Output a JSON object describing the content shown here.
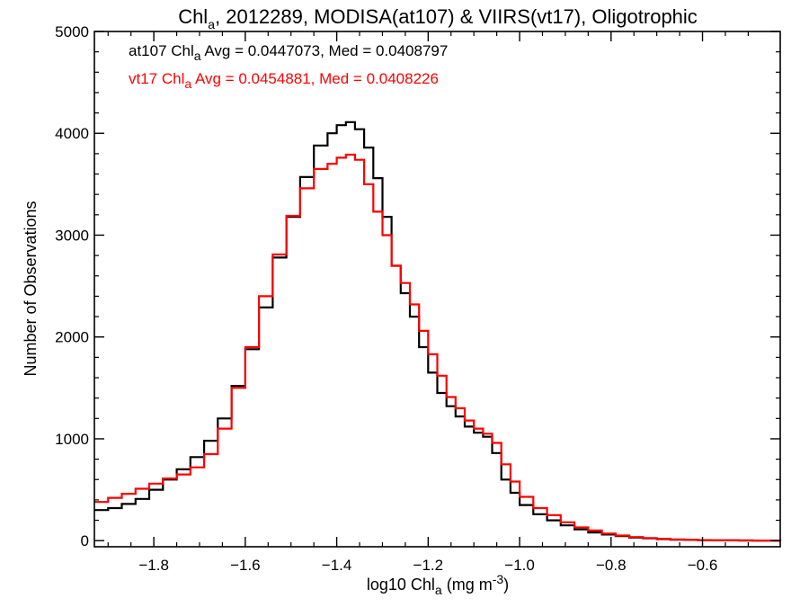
{
  "chart_data": {
    "type": "line",
    "title": {
      "pre": "Chl",
      "sub": "a",
      "post": ", 2012289, MODISA(at107) & VIIRS(vt17), Oligotrophic"
    },
    "xlabel": {
      "pre": "log10 Chl",
      "sub": "a",
      "post": " (mg m",
      "sup": "-3",
      "end": ")"
    },
    "ylabel": "Number of Observations",
    "xlim": [
      -1.93,
      -0.43
    ],
    "ylim": [
      -60,
      5000
    ],
    "xticks": [
      -1.8,
      -1.6,
      -1.4,
      -1.2,
      -1.0,
      -0.8,
      -0.6
    ],
    "xtick_labels": [
      "−1.8",
      "−1.6",
      "−1.4",
      "−1.2",
      "−1.0",
      "−0.8",
      "−0.6"
    ],
    "yticks": [
      0,
      1000,
      2000,
      3000,
      4000,
      5000
    ],
    "ytick_labels": [
      "0",
      "1000",
      "2000",
      "3000",
      "4000",
      "5000"
    ],
    "annotations": [
      {
        "pre": "at107 Chl",
        "sub": "a",
        "post": " Avg = 0.0447073, Med = 0.0408797",
        "color": "#000000"
      },
      {
        "pre": "vt17 Chl",
        "sub": "a",
        "post": " Avg = 0.0454881, Med = 0.0408226",
        "color": "#ff0000"
      }
    ],
    "series": [
      {
        "color": "#000000",
        "x": [
          -1.93,
          -1.9,
          -1.87,
          -1.84,
          -1.81,
          -1.78,
          -1.75,
          -1.72,
          -1.69,
          -1.66,
          -1.63,
          -1.6,
          -1.57,
          -1.54,
          -1.51,
          -1.48,
          -1.45,
          -1.42,
          -1.4,
          -1.38,
          -1.36,
          -1.34,
          -1.32,
          -1.3,
          -1.28,
          -1.26,
          -1.24,
          -1.22,
          -1.2,
          -1.18,
          -1.16,
          -1.14,
          -1.12,
          -1.1,
          -1.08,
          -1.06,
          -1.04,
          -1.02,
          -1.0,
          -0.97,
          -0.94,
          -0.91,
          -0.88,
          -0.85,
          -0.82,
          -0.79,
          -0.76,
          -0.73,
          -0.7,
          -0.67,
          -0.64,
          -0.61,
          -0.58,
          -0.55,
          -0.52,
          -0.49,
          -0.46,
          -0.43
        ],
        "values": [
          300,
          320,
          360,
          410,
          500,
          600,
          700,
          820,
          980,
          1200,
          1520,
          1880,
          2290,
          2780,
          3180,
          3570,
          3880,
          4000,
          4080,
          4110,
          4040,
          3860,
          3560,
          3180,
          2700,
          2430,
          2200,
          1900,
          1650,
          1450,
          1320,
          1220,
          1120,
          1060,
          1020,
          860,
          600,
          470,
          350,
          260,
          200,
          150,
          110,
          80,
          60,
          45,
          30,
          22,
          15,
          10,
          8,
          5,
          4,
          3,
          2,
          1,
          1,
          0
        ]
      },
      {
        "color": "#ff0000",
        "x": [
          -1.93,
          -1.9,
          -1.87,
          -1.84,
          -1.81,
          -1.78,
          -1.75,
          -1.72,
          -1.69,
          -1.66,
          -1.63,
          -1.6,
          -1.57,
          -1.54,
          -1.51,
          -1.48,
          -1.45,
          -1.42,
          -1.4,
          -1.38,
          -1.36,
          -1.34,
          -1.32,
          -1.3,
          -1.28,
          -1.26,
          -1.24,
          -1.22,
          -1.2,
          -1.18,
          -1.16,
          -1.14,
          -1.12,
          -1.1,
          -1.08,
          -1.06,
          -1.04,
          -1.02,
          -1.0,
          -0.97,
          -0.94,
          -0.91,
          -0.88,
          -0.85,
          -0.82,
          -0.79,
          -0.76,
          -0.73,
          -0.7,
          -0.67,
          -0.64,
          -0.61,
          -0.58,
          -0.55,
          -0.52,
          -0.49,
          -0.46,
          -0.43
        ],
        "values": [
          380,
          420,
          460,
          510,
          560,
          610,
          650,
          720,
          850,
          1100,
          1500,
          1900,
          2400,
          2810,
          3190,
          3460,
          3650,
          3700,
          3760,
          3790,
          3740,
          3500,
          3230,
          3000,
          2700,
          2530,
          2320,
          2060,
          1830,
          1620,
          1410,
          1300,
          1180,
          1100,
          1050,
          960,
          750,
          580,
          430,
          320,
          250,
          180,
          130,
          100,
          70,
          50,
          35,
          25,
          18,
          12,
          8,
          5,
          4,
          3,
          2,
          1,
          1,
          0
        ]
      }
    ],
    "grid": false,
    "legend": "none"
  }
}
